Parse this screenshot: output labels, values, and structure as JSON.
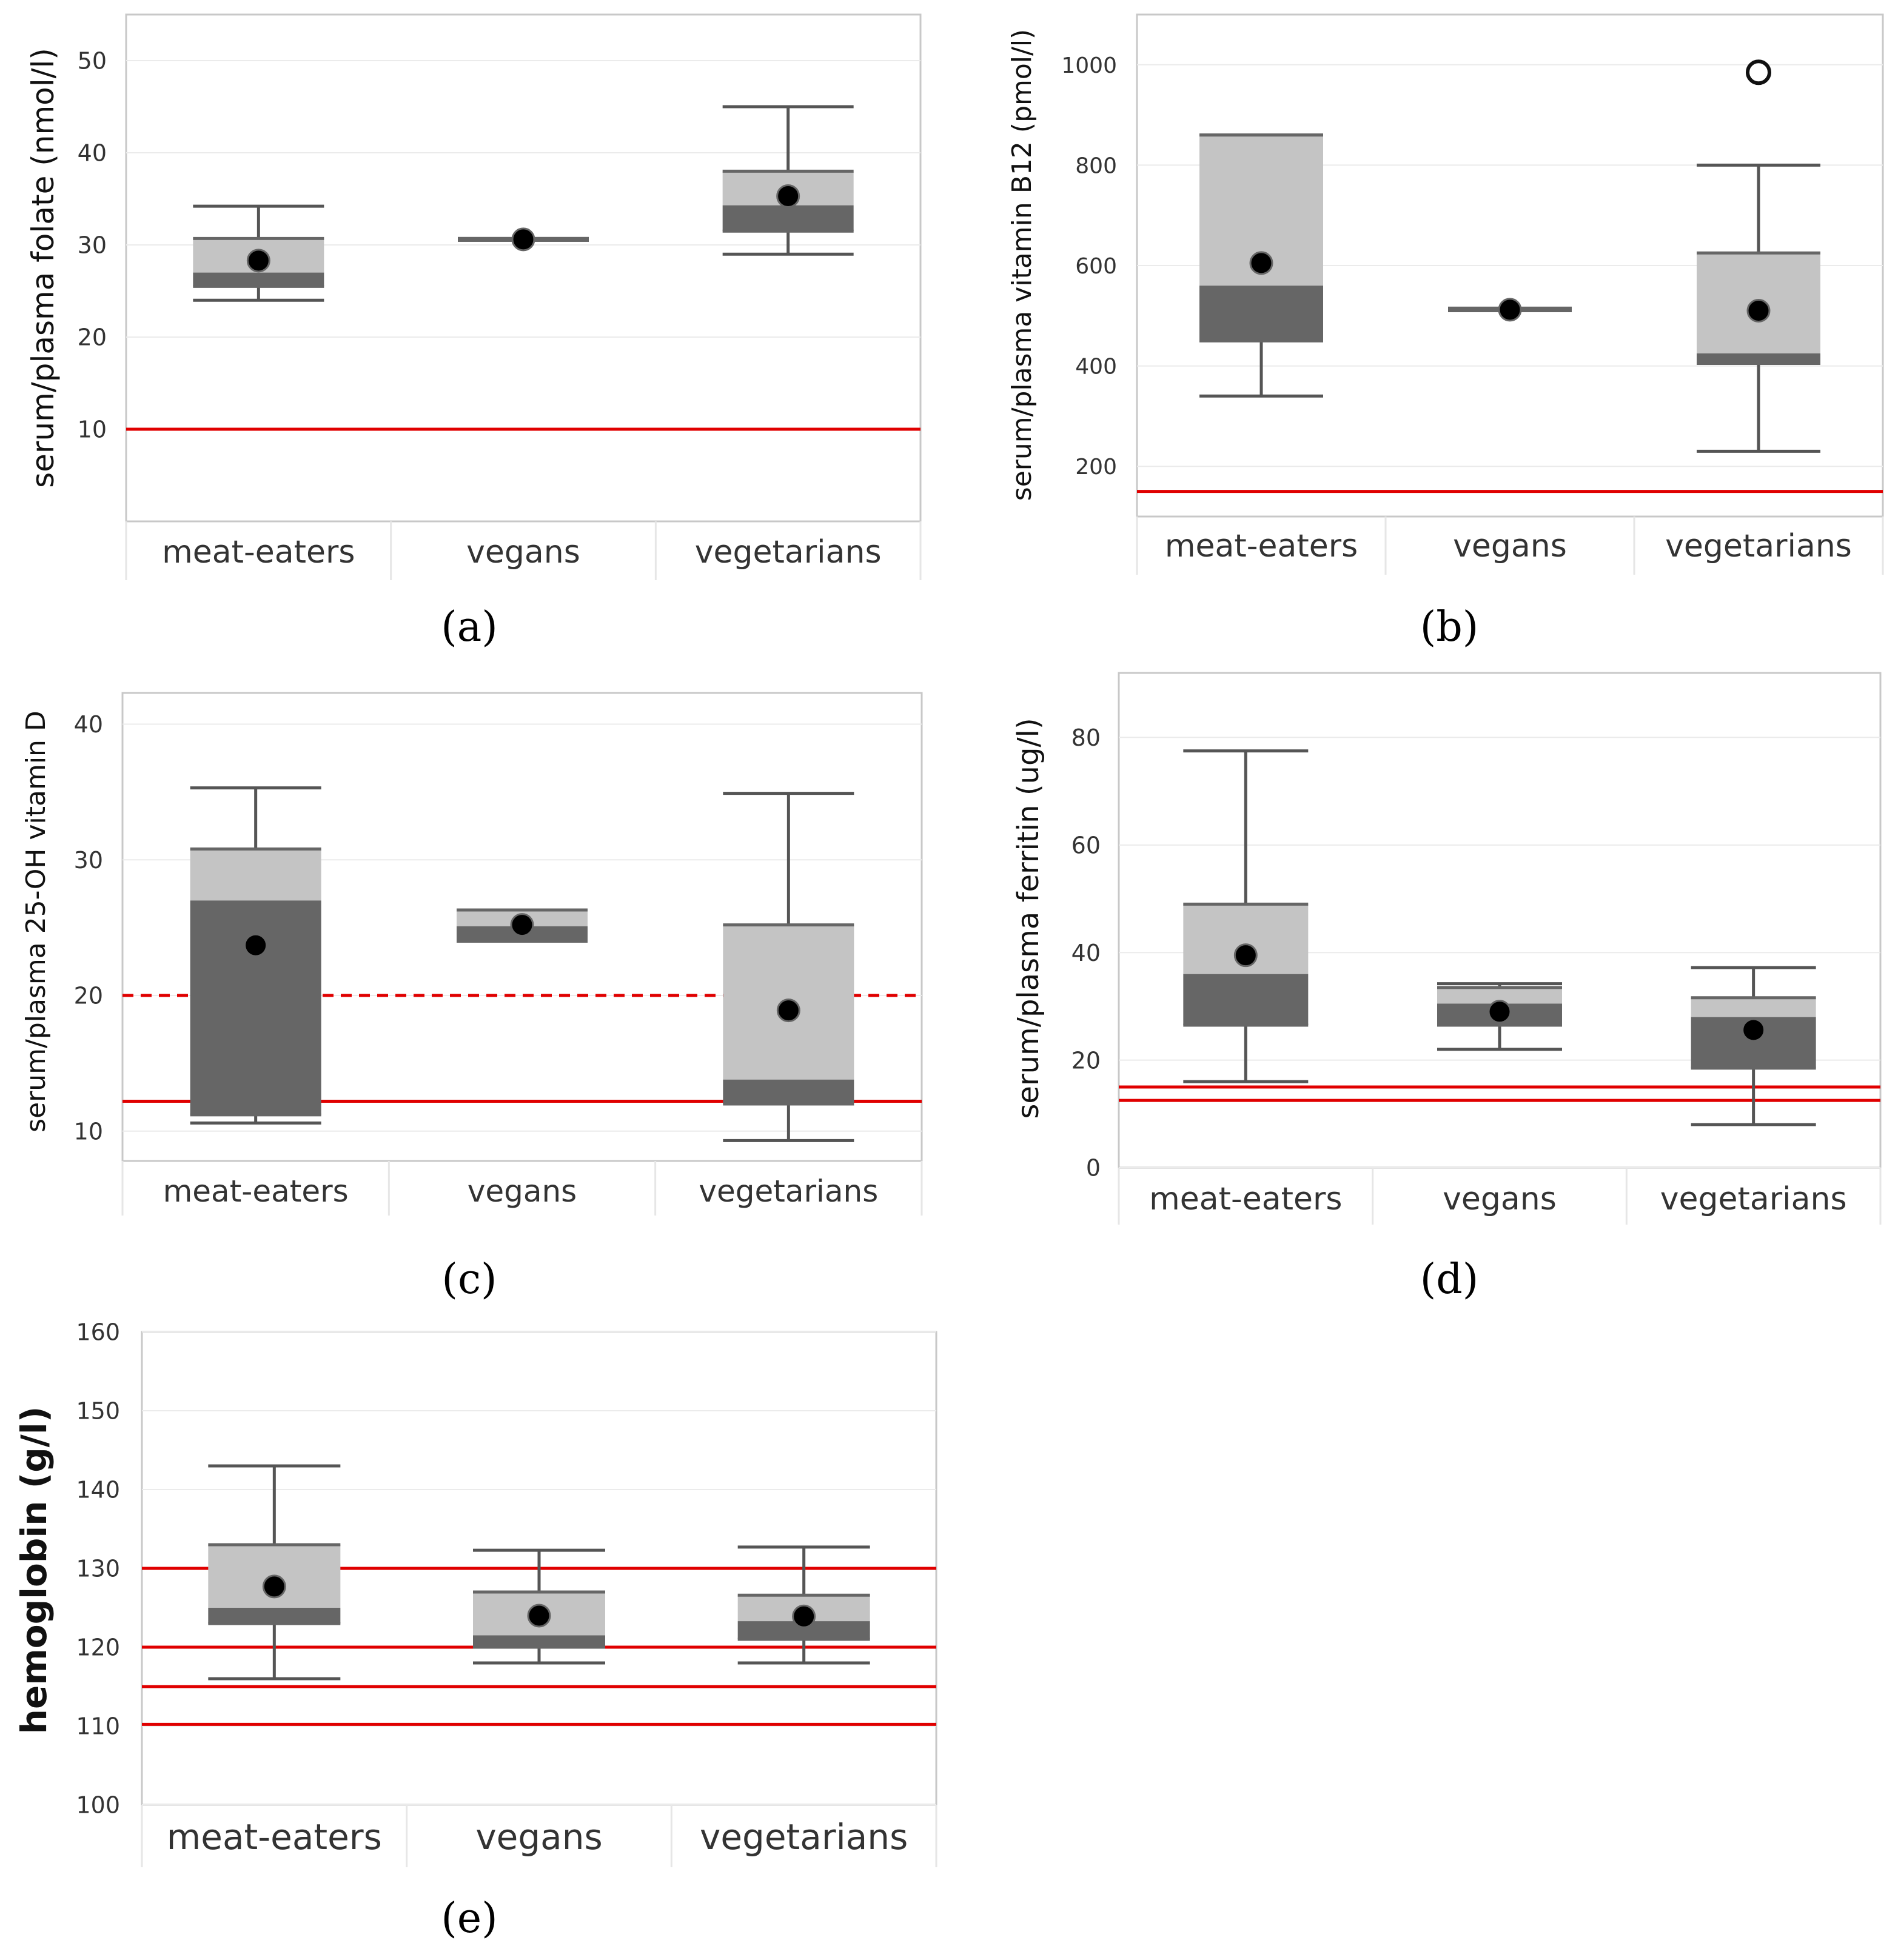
{
  "figure_colors": {
    "reference_line": "#e00000",
    "box_light": "#c4c4c4",
    "box_dark": "#666666",
    "whisker": "#555555",
    "mean_marker": "#000000",
    "grid": "#ebebeb",
    "frame": "#c8c8c8"
  },
  "chart_data": [
    {
      "id": "a",
      "panel_label": "(a)",
      "type": "box",
      "ylabel": "serum/plasma folate (nmol/l)",
      "ylim": [
        0,
        55
      ],
      "yticks": [
        10,
        20,
        30,
        40,
        50
      ],
      "categories": [
        "meat-eaters",
        "vegans",
        "vegetarians"
      ],
      "boxes": [
        {
          "min": 24,
          "q1": 25.5,
          "median": 27,
          "q3": 30.7,
          "max": 34.2,
          "mean": 28.3
        },
        {
          "min": 30.5,
          "q1": 30.5,
          "median": 30.5,
          "q3": 30.7,
          "max": 30.7,
          "mean": 30.6
        },
        {
          "min": 29,
          "q1": 31.5,
          "median": 34.3,
          "q3": 38,
          "max": 45,
          "mean": 35.3
        }
      ],
      "outliers": [],
      "reference_lines": [
        {
          "value": 10,
          "style": "solid"
        }
      ]
    },
    {
      "id": "b",
      "panel_label": "(b)",
      "type": "box",
      "ylabel": "serum/plasma vitamin B12 (pmol/l)",
      "ylim": [
        100,
        1100
      ],
      "yticks": [
        200,
        400,
        600,
        800,
        1000
      ],
      "categories": [
        "meat-eaters",
        "vegans",
        "vegetarians"
      ],
      "boxes": [
        {
          "min": 340,
          "q1": 450,
          "median": 560,
          "q3": 860,
          "max": 860,
          "mean": 605
        },
        {
          "min": 510,
          "q1": 510,
          "median": 510,
          "q3": 515,
          "max": 515,
          "mean": 512
        },
        {
          "min": 230,
          "q1": 405,
          "median": 425,
          "q3": 625,
          "max": 800,
          "mean": 510
        }
      ],
      "outliers": [
        {
          "category": "vegetarians",
          "value": 985
        }
      ],
      "reference_lines": [
        {
          "value": 150,
          "style": "solid"
        }
      ]
    },
    {
      "id": "c",
      "panel_label": "(c)",
      "type": "box",
      "ylabel": "serum/plasma 25-OH vitamin D",
      "ylim": [
        7.8,
        42.3
      ],
      "yticks": [
        10,
        20,
        30,
        40
      ],
      "categories": [
        "meat-eaters",
        "vegans",
        "vegetarians"
      ],
      "boxes": [
        {
          "min": 10.6,
          "q1": 11.2,
          "median": 27,
          "q3": 30.8,
          "max": 35.3,
          "mean": 23.7
        },
        {
          "min": 24,
          "q1": 24,
          "median": 25.1,
          "q3": 26.3,
          "max": 26.3,
          "mean": 25.2
        },
        {
          "min": 9.3,
          "q1": 12,
          "median": 13.8,
          "q3": 25.2,
          "max": 34.9,
          "mean": 18.9
        }
      ],
      "outliers": [],
      "reference_lines": [
        {
          "value": 20,
          "style": "dashed"
        },
        {
          "value": 12.2,
          "style": "solid"
        }
      ]
    },
    {
      "id": "d",
      "panel_label": "(d)",
      "type": "box",
      "ylabel": "serum/plasma ferritin (ug/l)",
      "ylim": [
        0,
        92
      ],
      "yticks": [
        0,
        20,
        40,
        60,
        80
      ],
      "categories": [
        "meat-eaters",
        "vegans",
        "vegetarians"
      ],
      "boxes": [
        {
          "min": 16,
          "q1": 26.5,
          "median": 36,
          "q3": 49,
          "max": 77.5,
          "mean": 39.5
        },
        {
          "min": 22,
          "q1": 26.5,
          "median": 30.5,
          "q3": 33.5,
          "max": 34.2,
          "mean": 29
        },
        {
          "min": 8,
          "q1": 18.5,
          "median": 28,
          "q3": 31.6,
          "max": 37.2,
          "mean": 25.6
        }
      ],
      "outliers": [],
      "reference_lines": [
        {
          "value": 15,
          "style": "solid"
        },
        {
          "value": 12.5,
          "style": "solid"
        }
      ]
    },
    {
      "id": "e",
      "panel_label": "(e)",
      "type": "box",
      "ylabel": "hemoglobin (g/l)",
      "ylim": [
        100,
        160
      ],
      "yticks": [
        100,
        110,
        120,
        130,
        140,
        150,
        160
      ],
      "categories": [
        "meat-eaters",
        "vegans",
        "vegetarians"
      ],
      "boxes": [
        {
          "min": 116,
          "q1": 123,
          "median": 125,
          "q3": 133,
          "max": 143,
          "mean": 127.7
        },
        {
          "min": 118,
          "q1": 120,
          "median": 121.5,
          "q3": 127,
          "max": 132.3,
          "mean": 124
        },
        {
          "min": 118,
          "q1": 121,
          "median": 123.3,
          "q3": 126.6,
          "max": 132.7,
          "mean": 123.9
        }
      ],
      "outliers": [],
      "reference_lines": [
        {
          "value": 130,
          "style": "solid"
        },
        {
          "value": 120,
          "style": "solid"
        },
        {
          "value": 115,
          "style": "solid"
        },
        {
          "value": 110.2,
          "style": "solid"
        }
      ]
    }
  ]
}
